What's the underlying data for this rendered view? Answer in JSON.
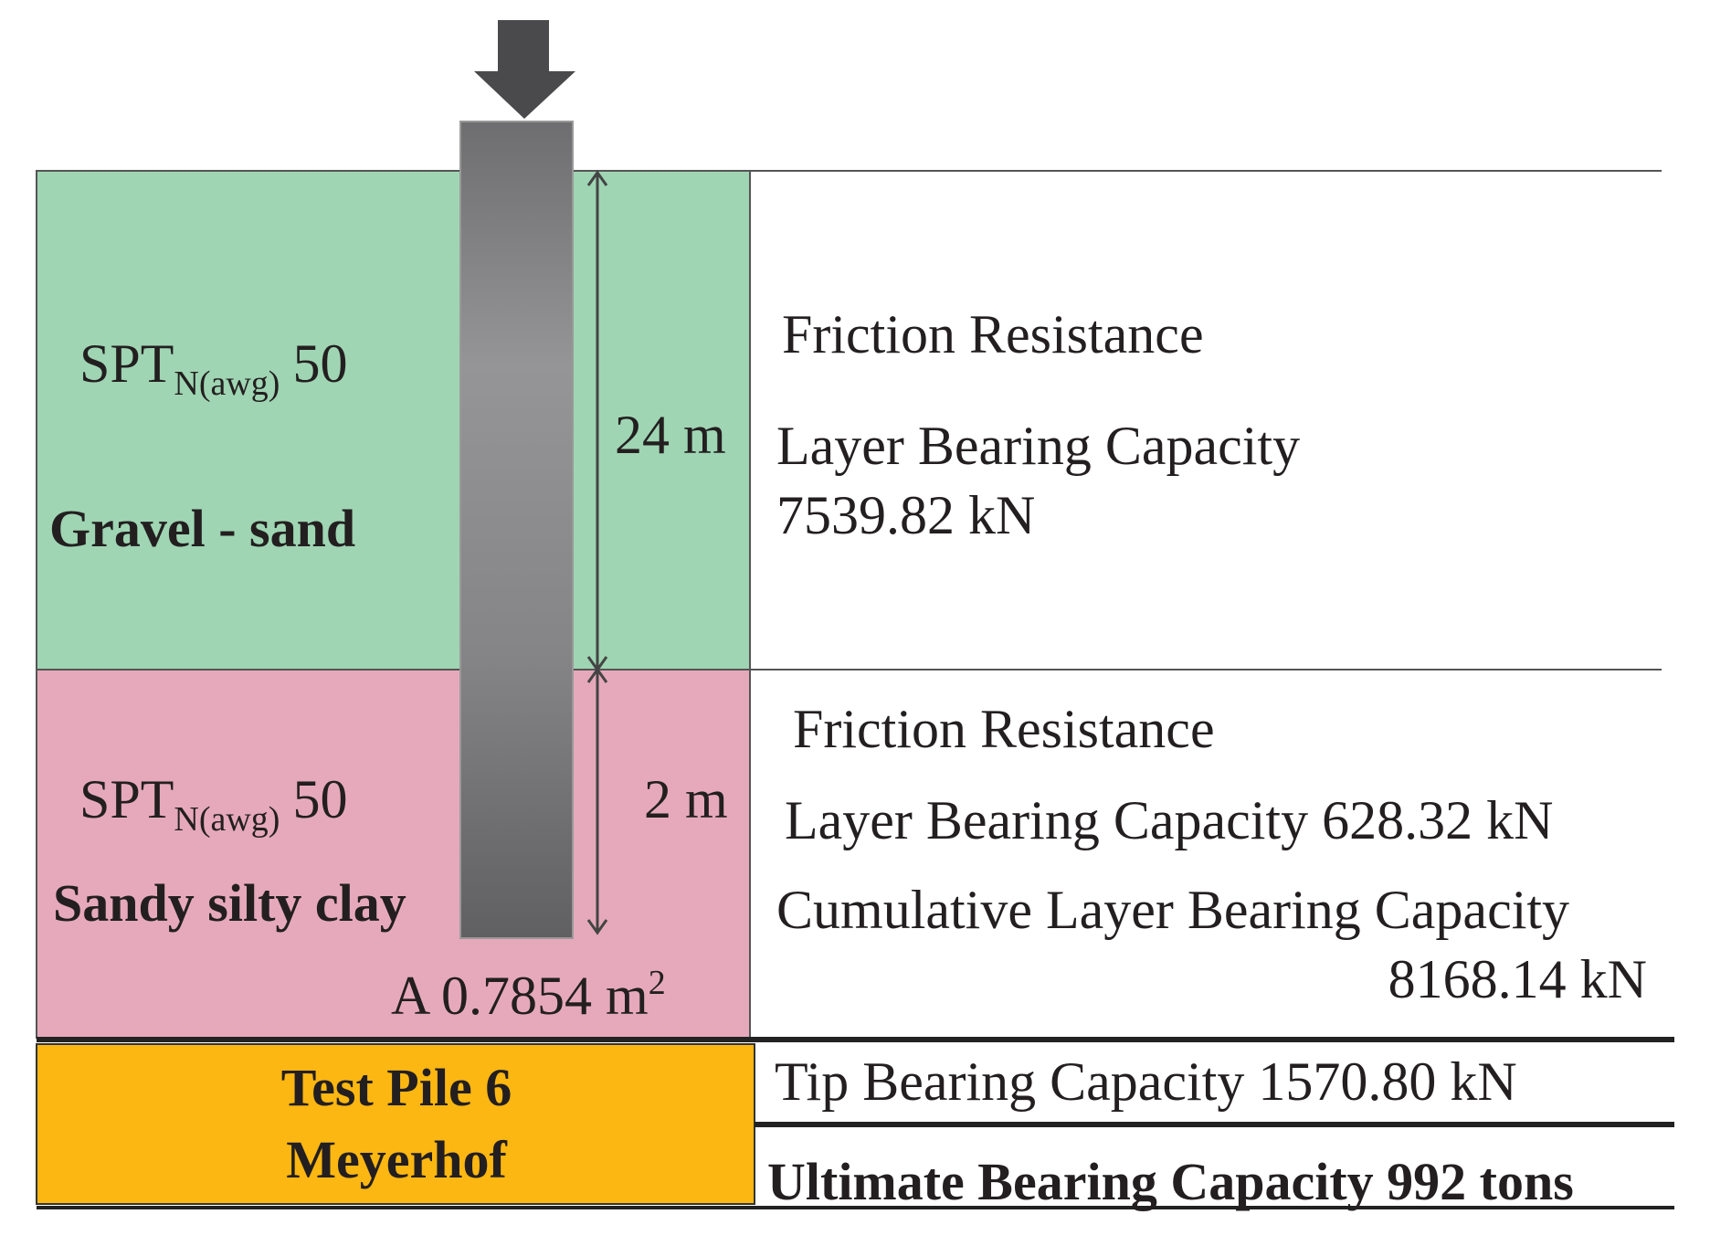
{
  "layers": [
    {
      "spt": "SPT",
      "spt_sub": "N(awg)",
      "spt_value": "50",
      "soil": "Gravel - sand",
      "thickness": "24 m",
      "results": [
        "Friction Resistance",
        "Layer Bearing Capacity",
        "7539.82 kN"
      ]
    },
    {
      "spt": "SPT",
      "spt_sub": "N(awg)",
      "spt_value": "50",
      "soil": "Sandy silty clay",
      "thickness": "2 m",
      "area": "A 0.7854 m",
      "area_sup": "2",
      "results": [
        "Friction Resistance",
        "Layer Bearing Capacity 628.32 kN",
        "Cumulative Layer Bearing Capacity",
        "8168.14 kN"
      ]
    }
  ],
  "pile": {
    "name": "Test Pile 6",
    "method": "Meyerhof"
  },
  "tip": "Tip Bearing Capacity 1570.80 kN",
  "ultimate": "Ultimate Bearing Capacity 992 tons"
}
